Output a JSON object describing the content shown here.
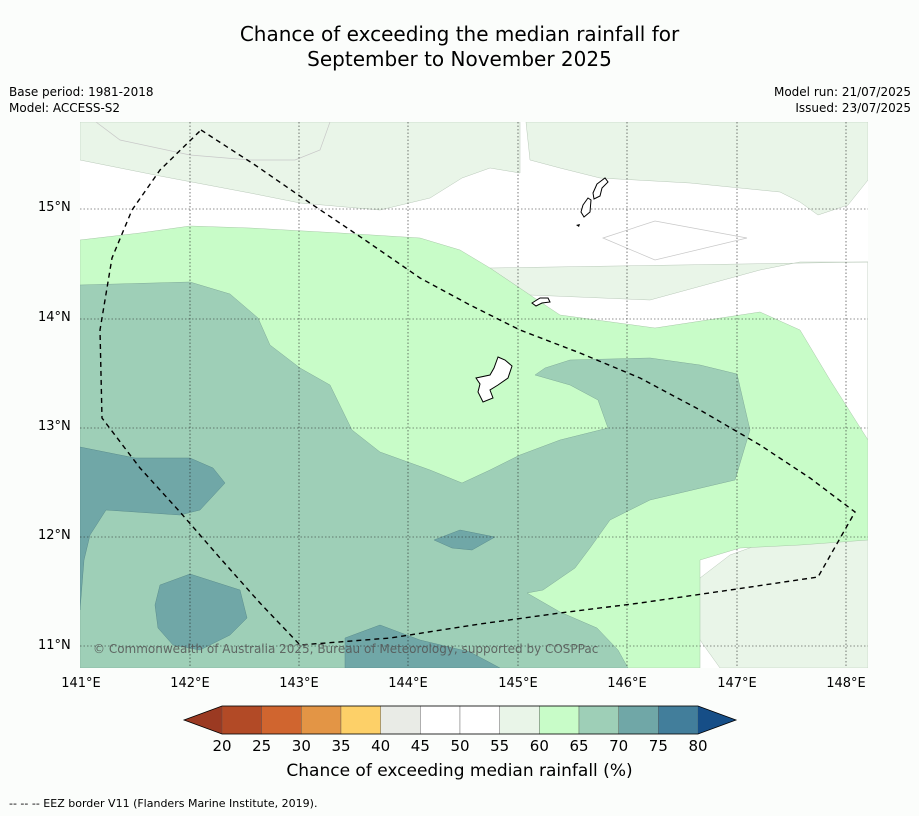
{
  "title": {
    "line1": "Chance of exceeding the median rainfall for",
    "line2": "September to November 2025"
  },
  "meta": {
    "base_period": "Base period: 1981-2018",
    "model": "Model: ACCESS-S2",
    "model_run": "Model run: 21/07/2025",
    "issued": "Issued: 23/07/2025"
  },
  "map": {
    "lat_labels": [
      "15°N",
      "14°N",
      "13°N",
      "12°N",
      "11°N"
    ],
    "lon_labels": [
      "141°E",
      "142°E",
      "143°E",
      "144°E",
      "145°E",
      "146°E",
      "147°E",
      "148°E"
    ],
    "copyright": "© Commonwealth of Australia 2025, Bureau of Meteorology, supported by COSPPac"
  },
  "colorbar": {
    "ticks": [
      "20",
      "25",
      "30",
      "35",
      "40",
      "45",
      "50",
      "55",
      "60",
      "65",
      "70",
      "75",
      "80"
    ],
    "colors": [
      "#b24a26",
      "#d0652f",
      "#e39545",
      "#fdd068",
      "#e9ebe6",
      "#ffffff",
      "#ffffff",
      "#e9f5e8",
      "#c8fcc8",
      "#9ecfb7",
      "#70a7a7",
      "#427e9b"
    ],
    "low_extend_color": "#9b3a22",
    "high_extend_color": "#164e87",
    "label": "Chance of exceeding median rainfall (%)"
  },
  "footer": "--  --  -- EEZ border V11 (Flanders Marine Institute, 2019)."
}
